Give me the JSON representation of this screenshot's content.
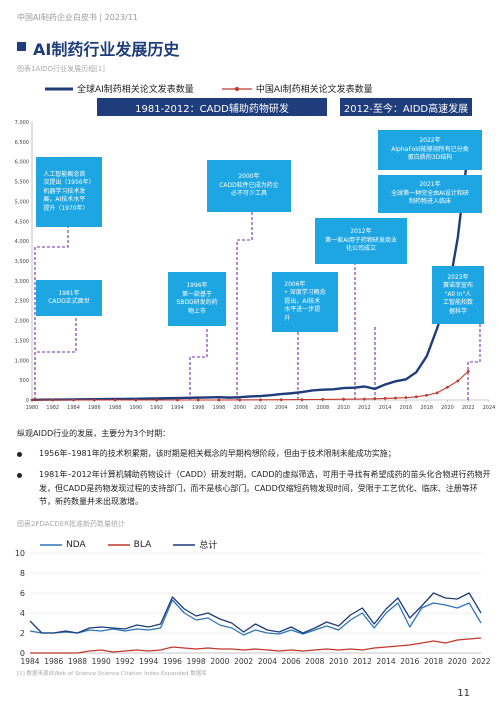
{
  "header": {
    "text": "中国AI制药企业白皮书 | 2023/11"
  },
  "title": "AI制药行业发展历史",
  "fig1_label": "图表1AIDD行业发展历程[1]",
  "chart1": {
    "legend": [
      "全球AI制药相关论文发表数量",
      "中国AI制药相关论文发表数量"
    ],
    "colors": {
      "global": "#1f3d7a",
      "china": "#c0392b",
      "callout": "#1ea6e2",
      "dashed": "#7b2fa8"
    },
    "eras": [
      "1981-2012：CADD辅助药物研发",
      "2012-至今：AIDD高速发展"
    ],
    "callouts": [
      {
        "name": "callout-1956",
        "text": "人工智能概念首\n次提出（1956年）\n机器学习技术发\n展，AI技术水平\n提升（1970年）"
      },
      {
        "name": "callout-1981",
        "text": "1981年\nCADD正式面世"
      },
      {
        "name": "callout-1996",
        "text": "1996年\n第一款基于\nSBDD研发的药\n物上市"
      },
      {
        "name": "callout-2000",
        "text": "2000年\nCADD软件已成为药企\n必不可少工具"
      },
      {
        "name": "callout-2006",
        "text": "2006年\n• 深度学习概念\n提出，AI技术\n水平进一步提\n升"
      },
      {
        "name": "callout-2012",
        "text": "2012年\n第一家AI用于药物研发商业\n化公司成立"
      },
      {
        "name": "callout-2021",
        "text": "2021年\n全球第一种完全由AI设计和研\n制药物进入临床"
      },
      {
        "name": "callout-2022",
        "text": "2022年\nAlphaFold能够测所有已分类\n蛋白质的3D结构"
      },
      {
        "name": "callout-2023",
        "text": "2023年\n赛诺菲宣布\n\"All In\"人\n工智能和数\n据科学"
      }
    ]
  },
  "chart_data": [
    {
      "type": "line",
      "title": "",
      "xlabel": "",
      "ylabel": "",
      "xlim": [
        1980,
        2024
      ],
      "ylim": [
        0,
        7000
      ],
      "xticks": [
        "1980",
        "1982",
        "1984",
        "1986",
        "1988",
        "1990",
        "1992",
        "1994",
        "1996",
        "1998",
        "2000",
        "2002",
        "2004",
        "2006",
        "2008",
        "2010",
        "2012",
        "2014",
        "2016",
        "2018",
        "2020",
        "2022",
        "2024"
      ],
      "yticks": [
        "0",
        "500",
        "1,000",
        "1,500",
        "2,000",
        "2,500",
        "3,000",
        "3,500",
        "4,000",
        "4,500",
        "5,000",
        "5,500",
        "6,000",
        "6,500",
        "7,000"
      ],
      "series": [
        {
          "name": "全球AI制药相关论文发表数量",
          "x": [
            1980,
            1981,
            1982,
            1983,
            1984,
            1985,
            1986,
            1987,
            1988,
            1989,
            1990,
            1991,
            1992,
            1993,
            1994,
            1995,
            1996,
            1997,
            1998,
            1999,
            2000,
            2001,
            2002,
            2003,
            2004,
            2005,
            2006,
            2007,
            2008,
            2009,
            2010,
            2011,
            2012,
            2013,
            2014,
            2015,
            2016,
            2017,
            2018,
            2019,
            2020,
            2021,
            2022
          ],
          "y": [
            5,
            8,
            10,
            12,
            15,
            18,
            20,
            22,
            25,
            28,
            30,
            35,
            40,
            45,
            50,
            55,
            60,
            65,
            70,
            60,
            70,
            90,
            100,
            120,
            150,
            170,
            200,
            240,
            260,
            270,
            300,
            310,
            340,
            280,
            390,
            470,
            520,
            700,
            1100,
            1800,
            2600,
            4100,
            6300
          ]
        },
        {
          "name": "中国AI制药相关论文发表数量",
          "x": [
            1980,
            1982,
            1984,
            1986,
            1988,
            1990,
            1992,
            1994,
            1996,
            1998,
            2000,
            2002,
            2004,
            2006,
            2008,
            2010,
            2012,
            2013,
            2014,
            2015,
            2016,
            2017,
            2018,
            2019,
            2020,
            2021,
            2022
          ],
          "y": [
            0,
            0,
            0,
            0,
            0,
            0,
            0,
            0,
            0,
            0,
            2,
            5,
            8,
            10,
            15,
            20,
            25,
            30,
            40,
            50,
            60,
            80,
            120,
            180,
            320,
            480,
            720
          ]
        }
      ]
    },
    {
      "type": "line",
      "title": "",
      "xlabel": "",
      "ylabel": "",
      "xlim": [
        1984,
        2022
      ],
      "ylim": [
        0,
        10
      ],
      "xticks": [
        "1984",
        "1986",
        "1988",
        "1990",
        "1992",
        "1994",
        "1996",
        "1998",
        "2000",
        "2002",
        "2004",
        "2006",
        "2008",
        "2010",
        "2012",
        "2014",
        "2016",
        "2018",
        "2020",
        "2022"
      ],
      "yticks": [
        "0",
        "2",
        "4",
        "6",
        "8",
        "10"
      ],
      "series": [
        {
          "name": "NDA",
          "x": [
            1984,
            1985,
            1986,
            1987,
            1988,
            1989,
            1990,
            1991,
            1992,
            1993,
            1994,
            1995,
            1996,
            1997,
            1998,
            1999,
            2000,
            2001,
            2002,
            2003,
            2004,
            2005,
            2006,
            2007,
            2008,
            2009,
            2010,
            2011,
            2012,
            2013,
            2014,
            2015,
            2016,
            2017,
            2018,
            2019,
            2020,
            2021,
            2022
          ],
          "y": [
            2.2,
            2.0,
            2.0,
            2.1,
            2.0,
            2.3,
            2.2,
            2.4,
            2.2,
            2.4,
            2.3,
            2.5,
            5.3,
            4.0,
            3.3,
            3.5,
            2.8,
            2.5,
            1.8,
            2.3,
            2.0,
            1.9,
            2.3,
            1.9,
            2.3,
            2.7,
            2.3,
            3.3,
            4.0,
            2.5,
            4.0,
            5.0,
            2.6,
            4.5,
            5.0,
            4.8,
            4.5,
            5.0,
            3.0
          ]
        },
        {
          "name": "BLA",
          "x": [
            1984,
            1985,
            1986,
            1987,
            1988,
            1989,
            1990,
            1991,
            1992,
            1993,
            1994,
            1995,
            1996,
            1997,
            1998,
            1999,
            2000,
            2001,
            2002,
            2003,
            2004,
            2005,
            2006,
            2007,
            2008,
            2009,
            2010,
            2011,
            2012,
            2013,
            2014,
            2015,
            2016,
            2017,
            2018,
            2019,
            2020,
            2021,
            2022
          ],
          "y": [
            0,
            0,
            0,
            0,
            0,
            0.2,
            0.3,
            0.1,
            0.2,
            0.3,
            0.2,
            0.3,
            0.6,
            0.5,
            0.4,
            0.5,
            0.4,
            0.4,
            0.3,
            0.4,
            0.3,
            0.2,
            0.3,
            0.2,
            0.3,
            0.4,
            0.3,
            0.4,
            0.3,
            0.5,
            0.6,
            0.7,
            0.8,
            1.0,
            1.2,
            1.0,
            1.3,
            1.4,
            1.5
          ]
        },
        {
          "name": "总计",
          "x": [
            1984,
            1985,
            1986,
            1987,
            1988,
            1989,
            1990,
            1991,
            1992,
            1993,
            1994,
            1995,
            1996,
            1997,
            1998,
            1999,
            2000,
            2001,
            2002,
            2003,
            2004,
            2005,
            2006,
            2007,
            2008,
            2009,
            2010,
            2011,
            2012,
            2013,
            2014,
            2015,
            2016,
            2017,
            2018,
            2019,
            2020,
            2021,
            2022
          ],
          "y": [
            3.2,
            2.0,
            2.0,
            2.2,
            2.0,
            2.5,
            2.6,
            2.5,
            2.4,
            2.8,
            2.6,
            2.9,
            5.6,
            4.4,
            3.7,
            4.0,
            3.4,
            3.0,
            2.1,
            2.9,
            2.3,
            2.1,
            2.6,
            2.0,
            2.5,
            3.1,
            2.7,
            3.8,
            4.5,
            2.9,
            4.4,
            5.5,
            3.5,
            4.7,
            6.0,
            5.5,
            5.4,
            6.0,
            4.0
          ]
        }
      ]
    }
  ],
  "section_intro": "纵观AIDD行业的发展，主要分为3个时期：",
  "bullets": [
    "1956年–1981年的技术积累期，该时期是相关概念的早期构想阶段，但由于技术限制未能成功实施；",
    "1981年–2012年计算机辅助药物设计（CADD）研发时期，CADD的虚拟筛选，可用于寻找有希望成药的苗头化合物进行药物开发，但CADD是药物发现过程的支持部门，而不是核心部门。CADD仅缩短药物发现时间，受限于工艺优化、临床、注册等环节，新药数量并未出现激增。"
  ],
  "fig2_label": "图表2FDACDER批准新药数量统计",
  "chart2_legend": [
    "NDA",
    "BLA",
    "总计"
  ],
  "chart2_colors": {
    "NDA": "#2e75b6",
    "BLA": "#c0392b",
    "总计": "#1f3d7a"
  },
  "footnote": "[1] 数据来源自Web of Science Science Citation Index Expanded 数据库",
  "page_number": "11"
}
